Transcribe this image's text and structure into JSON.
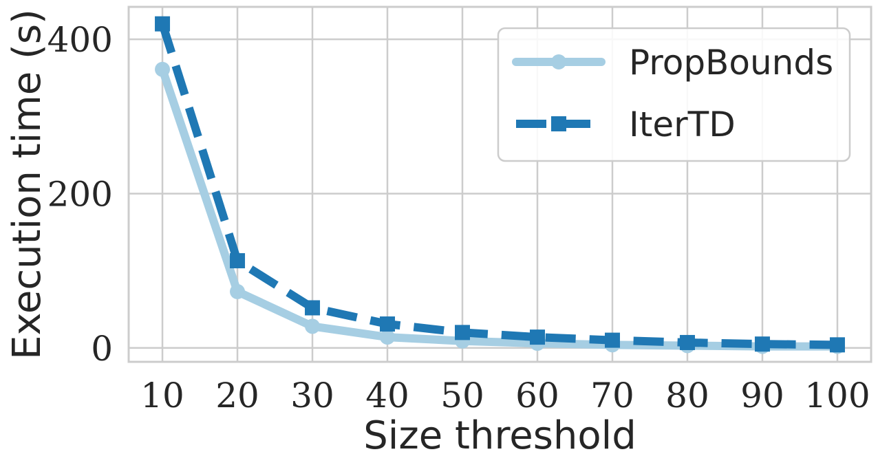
{
  "chart_data": {
    "type": "line",
    "title": "",
    "xlabel": "Size threshold",
    "ylabel": "Execution time (s)",
    "x": [
      10,
      20,
      30,
      40,
      50,
      60,
      70,
      80,
      90,
      100
    ],
    "x_tick_labels": [
      "10",
      "20",
      "30",
      "40",
      "50",
      "60",
      "70",
      "80",
      "90",
      "100"
    ],
    "y_ticks": [
      0,
      200,
      400
    ],
    "y_tick_labels": [
      "0",
      "200",
      "400"
    ],
    "xlim": [
      5.5,
      104.5
    ],
    "ylim": [
      -18,
      442
    ],
    "grid": true,
    "legend_position": "top-right",
    "series": [
      {
        "name": "PropBounds",
        "values": [
          361,
          73,
          28,
          14,
          9,
          6,
          4,
          3,
          2,
          2
        ],
        "color": "#a6cee3",
        "marker": "circle",
        "line_style": "solid"
      },
      {
        "name": "IterTD",
        "values": [
          420,
          113,
          52,
          31,
          20,
          14,
          10,
          7,
          5,
          4
        ],
        "color": "#1f78b4",
        "marker": "square",
        "line_style": "dashed"
      }
    ]
  }
}
